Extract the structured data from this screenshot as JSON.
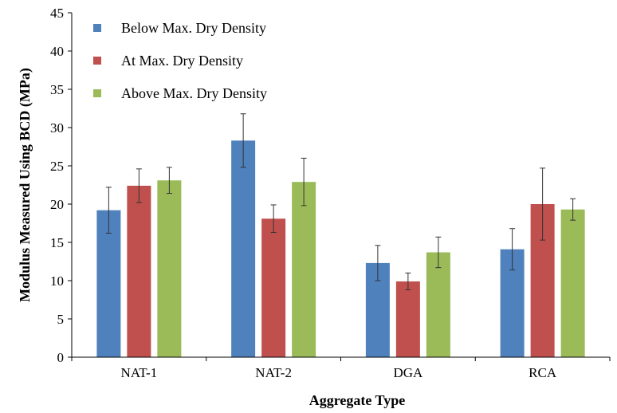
{
  "chart_data": {
    "type": "bar",
    "categories": [
      "NAT-1",
      "NAT-2",
      "DGA",
      "RCA"
    ],
    "series": [
      {
        "name": "Below Max. Dry Density",
        "color": "#4F81BD",
        "values": [
          19.2,
          28.3,
          12.3,
          14.1
        ],
        "error": [
          3.0,
          3.5,
          2.3,
          2.7
        ]
      },
      {
        "name": "At Max. Dry Density",
        "color": "#C0504D",
        "values": [
          22.4,
          18.1,
          9.9,
          20.0
        ],
        "error": [
          2.2,
          1.8,
          1.1,
          4.7
        ]
      },
      {
        "name": "Above Max. Dry Density",
        "color": "#9BBB59",
        "values": [
          23.1,
          22.9,
          13.7,
          19.3
        ],
        "error": [
          1.7,
          3.1,
          2.0,
          1.4
        ]
      }
    ],
    "title": "",
    "xlabel": "Aggregate Type",
    "ylabel": "Modulus Measured Using BCD (MPa)",
    "ylim": [
      0,
      45
    ],
    "yticks": [
      "0",
      "5",
      "10",
      "15",
      "20",
      "25",
      "30",
      "35",
      "40",
      "45"
    ],
    "grid": false,
    "legend_position": "top-left"
  }
}
